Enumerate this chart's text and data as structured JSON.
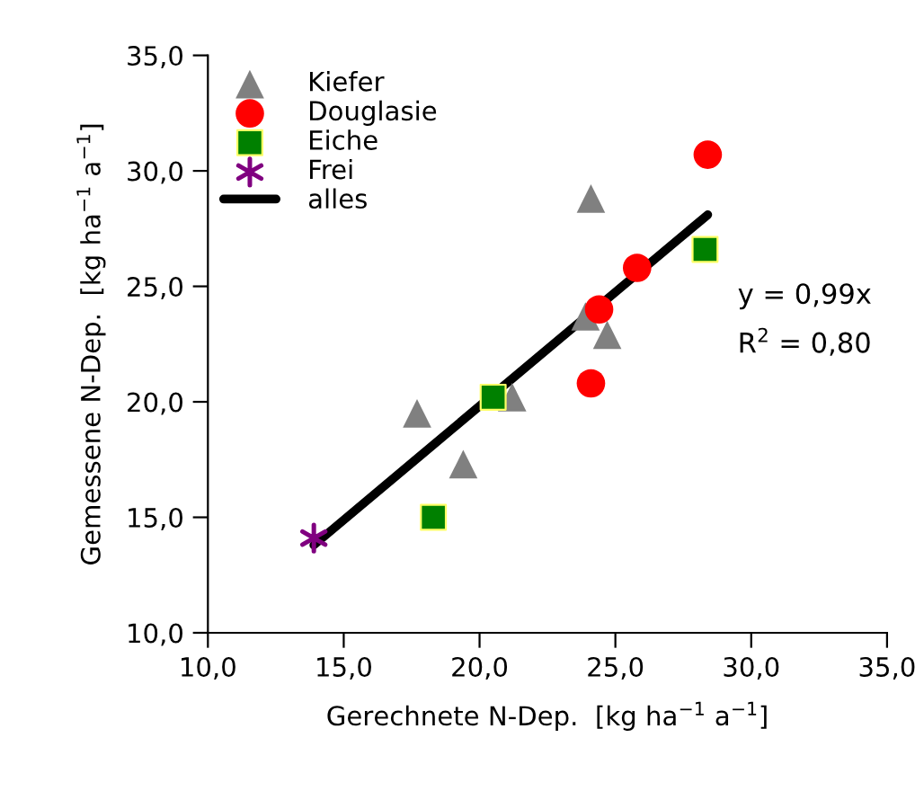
{
  "chart_data": {
    "type": "scatter",
    "xlabel": "Gerechnete N-Dep.  [kg ha$^{−1}$ a$^{−1}$]",
    "ylabel": "Gemessene N-Dep.  [kg ha$^{−1}$ a$^{−1}$]",
    "series": [
      {
        "name": "Kiefer",
        "color": "#808080",
        "marker": "triangle",
        "x": [
          17.7,
          19.4,
          21.2,
          24.1,
          24.7,
          23.9
        ],
        "values": [
          19.5,
          17.3,
          20.2,
          28.8,
          22.9,
          23.7
        ]
      },
      {
        "name": "Douglasie",
        "color": "#ff0000",
        "marker": "circle",
        "x": [
          28.4,
          25.8,
          24.4,
          24.1
        ],
        "values": [
          30.7,
          25.8,
          24.0,
          20.8
        ]
      },
      {
        "name": "Eiche",
        "color": "#008000",
        "marker": "square",
        "x": [
          28.3,
          20.5,
          18.3
        ],
        "values": [
          26.6,
          20.2,
          15.0
        ]
      },
      {
        "name": "Frei",
        "color": "#800080",
        "marker": "cross",
        "x": [
          13.9
        ],
        "values": [
          14.1
        ]
      },
      {
        "name": "alles",
        "type": "line",
        "color": "#000000",
        "marker": "none",
        "x": [
          13.9,
          28.4
        ],
        "values": [
          13.8,
          28.1
        ]
      }
    ],
    "annotations": [
      "y = 0,99x",
      "R$^{2}$ = 0,80"
    ],
    "xlim": [
      10,
      35
    ],
    "ylim": [
      10,
      35
    ],
    "xticks": [
      {
        "value": 10,
        "label": "10,0"
      },
      {
        "value": 15,
        "label": "15,0"
      },
      {
        "value": 20,
        "label": "20,0"
      },
      {
        "value": 25,
        "label": "25,0"
      },
      {
        "value": 30,
        "label": "30,0"
      },
      {
        "value": 35,
        "label": "35,0"
      }
    ],
    "yticks": [
      {
        "value": 10,
        "label": "10,0"
      },
      {
        "value": 15,
        "label": "15,0"
      },
      {
        "value": 20,
        "label": "20,0"
      },
      {
        "value": 25,
        "label": "25,0"
      },
      {
        "value": 30,
        "label": "30,0"
      },
      {
        "value": 35,
        "label": "35,0"
      }
    ],
    "grid": false,
    "legend": "top left"
  }
}
